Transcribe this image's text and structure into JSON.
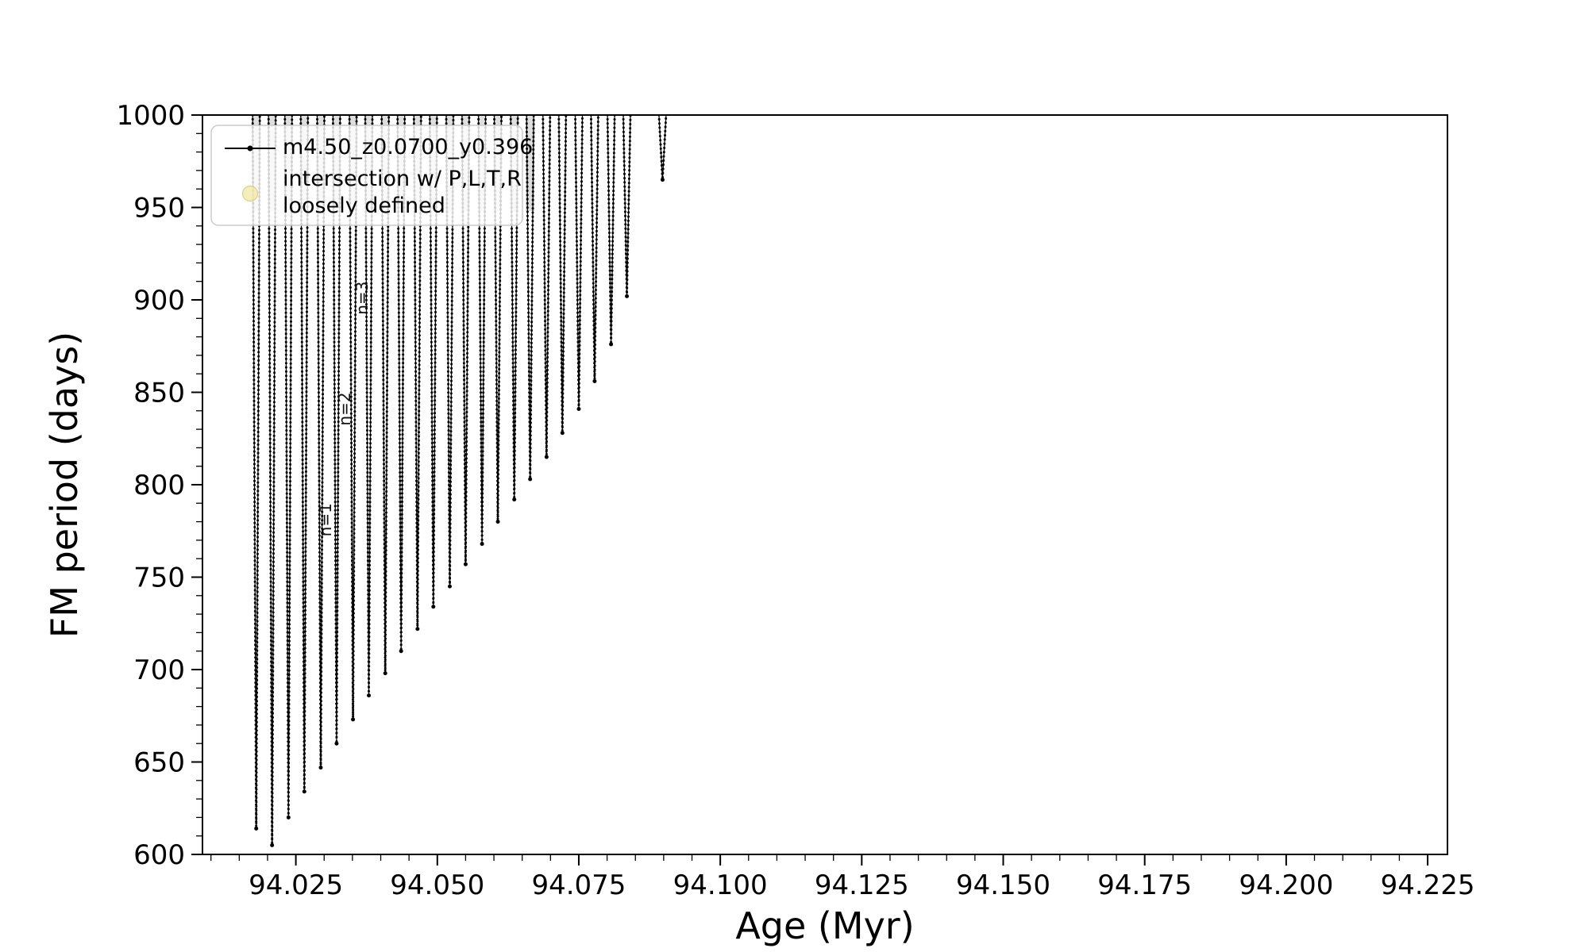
{
  "figure": {
    "background": "#ffffff"
  },
  "chart_data": {
    "type": "line",
    "title": "",
    "xlabel": "Age (Myr)",
    "ylabel": "FM period (days)",
    "xlim": [
      94.0085,
      94.2285
    ],
    "ylim": [
      600,
      1000
    ],
    "xticks": [
      94.025,
      94.05,
      94.075,
      94.1,
      94.125,
      94.15,
      94.175,
      94.2,
      94.225
    ],
    "xtick_labels": [
      "94.025",
      "94.050",
      "94.075",
      "94.100",
      "94.125",
      "94.150",
      "94.175",
      "94.200",
      "94.225"
    ],
    "yticks": [
      600,
      650,
      700,
      750,
      800,
      850,
      900,
      950,
      1000
    ],
    "ytick_labels": [
      "600",
      "650",
      "700",
      "750",
      "800",
      "850",
      "900",
      "950",
      "1000"
    ],
    "x_minor_step": 0.005,
    "y_minor_step": 10,
    "grid": false,
    "series": [
      {
        "name": "m4.50_z0.0700_y0.396",
        "color": "#000000",
        "marker": "point",
        "spike_top": 1000,
        "spikes": [
          {
            "x": 94.018,
            "min": 614
          },
          {
            "x": 94.0208,
            "min": 605
          },
          {
            "x": 94.0237,
            "min": 620
          },
          {
            "x": 94.0265,
            "min": 634
          },
          {
            "x": 94.0294,
            "min": 647
          },
          {
            "x": 94.0322,
            "min": 660
          },
          {
            "x": 94.0351,
            "min": 673
          },
          {
            "x": 94.0379,
            "min": 686
          },
          {
            "x": 94.0408,
            "min": 698
          },
          {
            "x": 94.0436,
            "min": 710
          },
          {
            "x": 94.0465,
            "min": 722
          },
          {
            "x": 94.0493,
            "min": 734
          },
          {
            "x": 94.0522,
            "min": 745
          },
          {
            "x": 94.055,
            "min": 757
          },
          {
            "x": 94.0579,
            "min": 768
          },
          {
            "x": 94.0607,
            "min": 780
          },
          {
            "x": 94.0636,
            "min": 792
          },
          {
            "x": 94.0664,
            "min": 803
          },
          {
            "x": 94.0693,
            "min": 815
          },
          {
            "x": 94.0721,
            "min": 828
          },
          {
            "x": 94.075,
            "min": 841
          },
          {
            "x": 94.0778,
            "min": 856
          },
          {
            "x": 94.0807,
            "min": 876
          },
          {
            "x": 94.0835,
            "min": 902
          },
          {
            "x": 94.0898,
            "min": 965
          }
        ]
      }
    ],
    "top_haze": {
      "y_bottom": 948,
      "max_x": 94.0685,
      "color": "#bdbdbd",
      "opacity": 0.5
    },
    "legend": {
      "position": "upper-left",
      "entries": [
        {
          "marker": "line-dot",
          "color": "#000000",
          "label_lines": [
            "m4.50_z0.0700_y0.396"
          ]
        },
        {
          "marker": "circle",
          "color": "#efe8a5",
          "edge_color": "#ddd27e",
          "label_lines": [
            "intersection w/ P,L,T,R",
            "loosely defined"
          ]
        }
      ]
    },
    "annotations": [
      {
        "text": "n=1",
        "x": 94.0312,
        "y": 781,
        "rotation": 90
      },
      {
        "text": "n=2",
        "x": 94.0346,
        "y": 841,
        "rotation": 90
      },
      {
        "text": "n=3",
        "x": 94.0377,
        "y": 901,
        "rotation": 90
      }
    ]
  }
}
